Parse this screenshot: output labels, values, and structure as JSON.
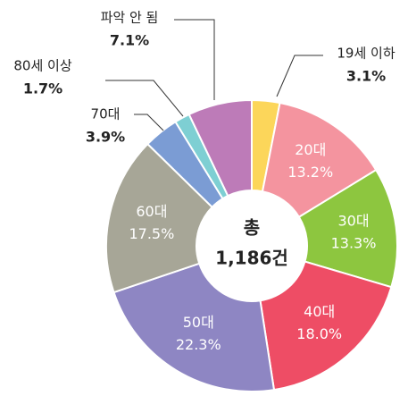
{
  "chart_data": {
    "type": "donut",
    "categories": [
      "19세 이하",
      "20대",
      "30대",
      "40대",
      "50대",
      "60대",
      "70대",
      "80세 이상",
      "파악 안 됨"
    ],
    "values": [
      3.1,
      13.2,
      13.3,
      18.0,
      22.3,
      17.5,
      3.9,
      1.7,
      7.1
    ],
    "value_labels": [
      "3.1%",
      "13.2%",
      "13.3%",
      "18.0%",
      "22.3%",
      "17.5%",
      "3.9%",
      "1.7%",
      "7.1%"
    ],
    "colors": [
      "#fcd65a",
      "#f4949f",
      "#8dc63f",
      "#ee4d65",
      "#8e86c3",
      "#a7a697",
      "#7b9cd4",
      "#7ecfd3",
      "#bd7bb8"
    ],
    "center_text": [
      "총",
      "1,186건"
    ]
  }
}
